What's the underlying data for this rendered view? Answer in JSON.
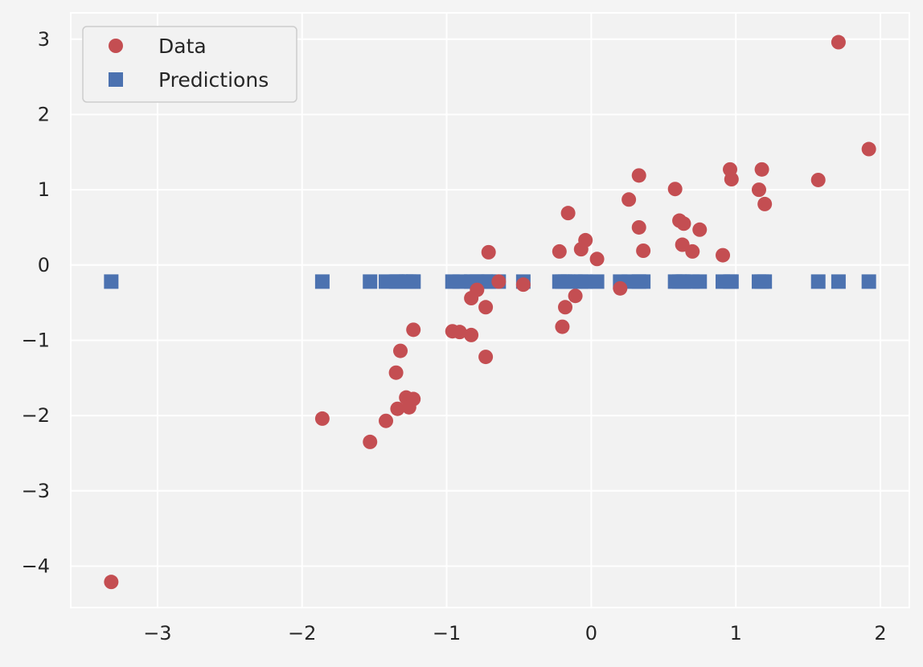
{
  "chart_data": {
    "type": "scatter",
    "title": "",
    "xlabel": "",
    "ylabel": "",
    "xlim": [
      -3.6,
      2.2
    ],
    "ylim": [
      -4.55,
      3.35
    ],
    "grid": true,
    "legend_position": "top-left",
    "x_ticks": [
      -3,
      -2,
      -1,
      0,
      1,
      2
    ],
    "y_ticks": [
      -4,
      -3,
      -2,
      -1,
      0,
      1,
      2,
      3
    ],
    "x_tick_labels": [
      "−3",
      "−2",
      "−1",
      "0",
      "1",
      "2"
    ],
    "y_tick_labels": [
      "−4",
      "−3",
      "−2",
      "−1",
      "0",
      "1",
      "2",
      "3"
    ],
    "series": [
      {
        "name": "Data",
        "marker": "circle",
        "color": "#c44e52",
        "points": [
          [
            -3.32,
            -4.21
          ],
          [
            -1.86,
            -2.04
          ],
          [
            -1.53,
            -2.35
          ],
          [
            -1.42,
            -2.07
          ],
          [
            -1.35,
            -1.43
          ],
          [
            -1.34,
            -1.91
          ],
          [
            -1.32,
            -1.14
          ],
          [
            -1.28,
            -1.76
          ],
          [
            -1.26,
            -1.89
          ],
          [
            -1.23,
            -1.78
          ],
          [
            -1.23,
            -0.86
          ],
          [
            -0.96,
            -0.88
          ],
          [
            -0.91,
            -0.89
          ],
          [
            -0.83,
            -0.93
          ],
          [
            -0.83,
            -0.44
          ],
          [
            -0.79,
            -0.33
          ],
          [
            -0.73,
            -1.22
          ],
          [
            -0.73,
            -0.56
          ],
          [
            -0.71,
            0.17
          ],
          [
            -0.64,
            -0.22
          ],
          [
            -0.47,
            -0.26
          ],
          [
            -0.22,
            0.18
          ],
          [
            -0.2,
            -0.82
          ],
          [
            -0.18,
            -0.56
          ],
          [
            -0.16,
            0.69
          ],
          [
            -0.11,
            -0.41
          ],
          [
            -0.07,
            0.21
          ],
          [
            -0.04,
            0.33
          ],
          [
            0.04,
            0.08
          ],
          [
            0.2,
            -0.31
          ],
          [
            0.26,
            0.87
          ],
          [
            0.33,
            1.19
          ],
          [
            0.33,
            0.5
          ],
          [
            0.36,
            0.19
          ],
          [
            0.58,
            1.01
          ],
          [
            0.61,
            0.59
          ],
          [
            0.63,
            0.27
          ],
          [
            0.64,
            0.55
          ],
          [
            0.7,
            0.18
          ],
          [
            0.75,
            0.47
          ],
          [
            0.91,
            0.13
          ],
          [
            0.96,
            1.27
          ],
          [
            0.97,
            1.14
          ],
          [
            1.16,
            1.0
          ],
          [
            1.18,
            1.27
          ],
          [
            1.2,
            0.81
          ],
          [
            1.57,
            1.13
          ],
          [
            1.71,
            2.96
          ],
          [
            1.92,
            1.54
          ]
        ]
      },
      {
        "name": "Predictions",
        "marker": "square",
        "color": "#4c72b0",
        "y_value": -0.22,
        "x": [
          -3.32,
          -1.86,
          -1.53,
          -1.42,
          -1.35,
          -1.34,
          -1.32,
          -1.28,
          -1.26,
          -1.23,
          -1.23,
          -0.96,
          -0.91,
          -0.83,
          -0.83,
          -0.79,
          -0.73,
          -0.73,
          -0.71,
          -0.64,
          -0.47,
          -0.22,
          -0.2,
          -0.18,
          -0.16,
          -0.11,
          -0.07,
          -0.04,
          0.04,
          0.2,
          0.26,
          0.33,
          0.33,
          0.36,
          0.58,
          0.61,
          0.63,
          0.64,
          0.7,
          0.75,
          0.91,
          0.96,
          0.97,
          1.16,
          1.18,
          1.2,
          1.57,
          1.71,
          1.92
        ]
      }
    ]
  }
}
